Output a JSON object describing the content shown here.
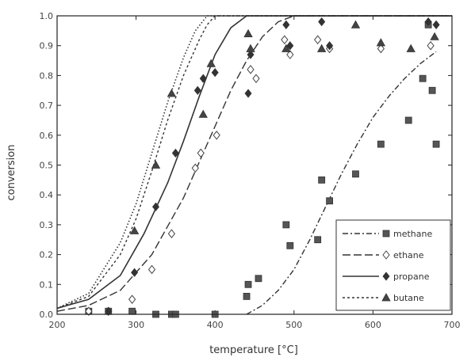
{
  "chart_data": {
    "type": "scatter",
    "xlabel": "temperature [°C]",
    "ylabel": "conversion",
    "xlim": [
      200,
      700
    ],
    "ylim": [
      0,
      1.0
    ],
    "xticks": [
      200,
      300,
      400,
      500,
      600,
      700
    ],
    "yticks": [
      "0.0",
      "0.1",
      "0.2",
      "0.3",
      "0.4",
      "0.5",
      "0.6",
      "0.7",
      "0.8",
      "0.9",
      "1.0"
    ],
    "grid": false,
    "legend_position": "bottom-right",
    "series": [
      {
        "name": "methane",
        "marker": "square",
        "line_style": "dash-dot",
        "color": "#555555",
        "points": [
          [
            240,
            0.01
          ],
          [
            265,
            0.01
          ],
          [
            295,
            0.01
          ],
          [
            325,
            0.0
          ],
          [
            345,
            0.0
          ],
          [
            350,
            0.0
          ],
          [
            400,
            0.0
          ],
          [
            440,
            0.06
          ],
          [
            442,
            0.1
          ],
          [
            455,
            0.12
          ],
          [
            490,
            0.3
          ],
          [
            495,
            0.23
          ],
          [
            530,
            0.25
          ],
          [
            535,
            0.45
          ],
          [
            545,
            0.38
          ],
          [
            578,
            0.47
          ],
          [
            610,
            0.57
          ],
          [
            645,
            0.65
          ],
          [
            663,
            0.79
          ],
          [
            670,
            0.97
          ],
          [
            675,
            0.75
          ],
          [
            680,
            0.57
          ]
        ],
        "curve": [
          [
            440,
            0.0
          ],
          [
            460,
            0.03
          ],
          [
            480,
            0.08
          ],
          [
            500,
            0.15
          ],
          [
            520,
            0.25
          ],
          [
            540,
            0.36
          ],
          [
            560,
            0.47
          ],
          [
            580,
            0.57
          ],
          [
            600,
            0.66
          ],
          [
            620,
            0.73
          ],
          [
            640,
            0.79
          ],
          [
            660,
            0.84
          ],
          [
            680,
            0.88
          ]
        ]
      },
      {
        "name": "ethane",
        "marker": "diamond-open",
        "line_style": "long-dash",
        "color": "#555555",
        "points": [
          [
            240,
            0.01
          ],
          [
            265,
            0.01
          ],
          [
            295,
            0.05
          ],
          [
            320,
            0.15
          ],
          [
            345,
            0.27
          ],
          [
            375,
            0.49
          ],
          [
            382,
            0.54
          ],
          [
            402,
            0.6
          ],
          [
            445,
            0.82
          ],
          [
            452,
            0.79
          ],
          [
            488,
            0.92
          ],
          [
            495,
            0.87
          ],
          [
            530,
            0.92
          ],
          [
            545,
            0.89
          ],
          [
            610,
            0.89
          ],
          [
            673,
            0.9
          ]
        ],
        "curve": [
          [
            200,
            0.01
          ],
          [
            240,
            0.03
          ],
          [
            280,
            0.08
          ],
          [
            320,
            0.2
          ],
          [
            360,
            0.39
          ],
          [
            380,
            0.51
          ],
          [
            400,
            0.63
          ],
          [
            420,
            0.75
          ],
          [
            440,
            0.85
          ],
          [
            460,
            0.93
          ],
          [
            480,
            0.98
          ],
          [
            500,
            1.0
          ],
          [
            700,
            1.0
          ]
        ]
      },
      {
        "name": "propane",
        "marker": "diamond-filled",
        "line_style": "solid",
        "color": "#555555",
        "points": [
          [
            265,
            0.01
          ],
          [
            298,
            0.14
          ],
          [
            325,
            0.36
          ],
          [
            350,
            0.54
          ],
          [
            378,
            0.75
          ],
          [
            385,
            0.79
          ],
          [
            400,
            0.81
          ],
          [
            442,
            0.74
          ],
          [
            445,
            0.87
          ],
          [
            490,
            0.97
          ],
          [
            495,
            0.9
          ],
          [
            535,
            0.98
          ],
          [
            545,
            0.9
          ],
          [
            670,
            0.98
          ],
          [
            680,
            0.97
          ]
        ],
        "curve": [
          [
            200,
            0.02
          ],
          [
            240,
            0.05
          ],
          [
            280,
            0.13
          ],
          [
            310,
            0.27
          ],
          [
            340,
            0.44
          ],
          [
            360,
            0.58
          ],
          [
            380,
            0.73
          ],
          [
            400,
            0.87
          ],
          [
            420,
            0.96
          ],
          [
            440,
            1.0
          ],
          [
            700,
            1.0
          ]
        ]
      },
      {
        "name": "butane",
        "marker": "triangle",
        "line_style": "short-dash",
        "color": "#555555",
        "points": [
          [
            298,
            0.28
          ],
          [
            325,
            0.5
          ],
          [
            345,
            0.74
          ],
          [
            385,
            0.67
          ],
          [
            395,
            0.84
          ],
          [
            442,
            0.94
          ],
          [
            445,
            0.89
          ],
          [
            490,
            0.89
          ],
          [
            535,
            0.89
          ],
          [
            578,
            0.97
          ],
          [
            610,
            0.91
          ],
          [
            648,
            0.89
          ],
          [
            678,
            0.93
          ]
        ],
        "curve": [
          [
            200,
            0.02
          ],
          [
            240,
            0.06
          ],
          [
            280,
            0.2
          ],
          [
            300,
            0.32
          ],
          [
            320,
            0.48
          ],
          [
            340,
            0.65
          ],
          [
            360,
            0.8
          ],
          [
            380,
            0.92
          ],
          [
            390,
            0.97
          ],
          [
            400,
            1.0
          ],
          [
            700,
            1.0
          ]
        ]
      }
    ],
    "extra_curve": {
      "style": "dotted",
      "points": [
        [
          200,
          0.02
        ],
        [
          240,
          0.07
        ],
        [
          280,
          0.24
        ],
        [
          300,
          0.37
        ],
        [
          320,
          0.54
        ],
        [
          340,
          0.71
        ],
        [
          360,
          0.86
        ],
        [
          375,
          0.95
        ],
        [
          390,
          1.0
        ],
        [
          700,
          1.0
        ]
      ]
    }
  }
}
